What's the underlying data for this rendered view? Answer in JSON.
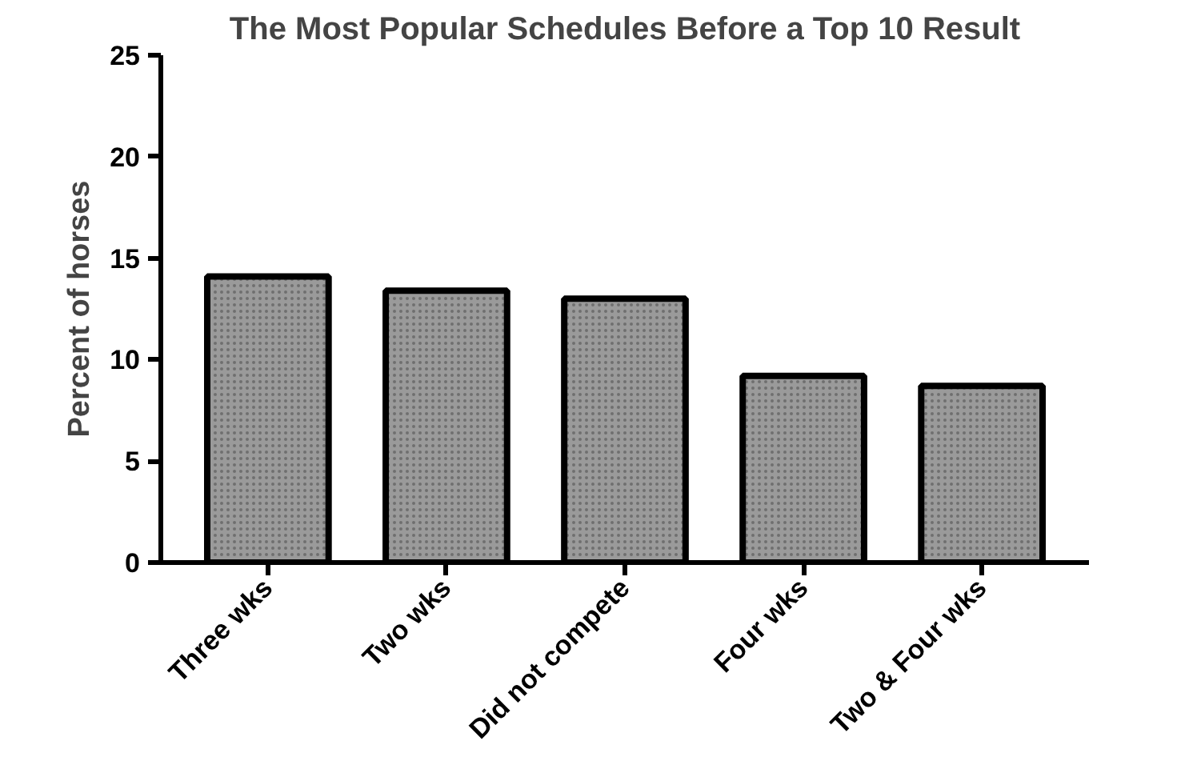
{
  "chart_data": {
    "type": "bar",
    "title": "The Most Popular Schedules Before a Top 10 Result",
    "ylabel": "Percent of horses",
    "categories": [
      "Three wks",
      "Two wks",
      "Did not compete",
      "Four wks",
      "Two & Four wks"
    ],
    "values": [
      14.1,
      13.4,
      13.0,
      9.2,
      8.7
    ],
    "color": "#9a9a9a",
    "ylim": [
      0,
      25
    ],
    "yticks": [
      0,
      5,
      10,
      15,
      20,
      25
    ],
    "grid": false
  }
}
